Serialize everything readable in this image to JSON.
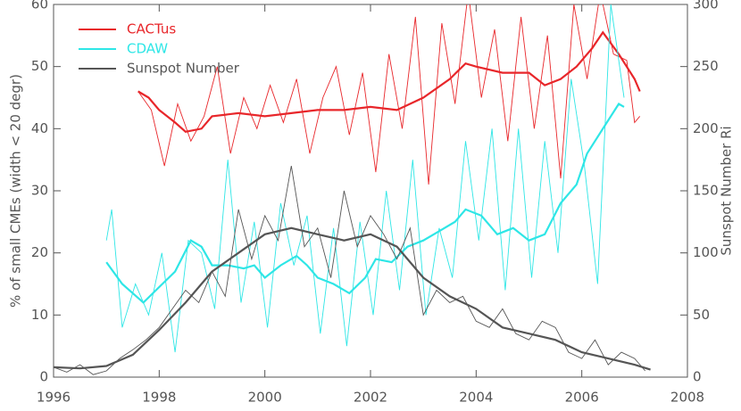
{
  "chart_data": {
    "type": "line",
    "ylabel": "% of small CMEs (width < 20 degr)",
    "y2label": "Sunspot Number Ri",
    "xlim": [
      1996,
      2008
    ],
    "xticks": [
      1996,
      1998,
      2000,
      2002,
      2004,
      2006,
      2008
    ],
    "ylim": [
      0,
      60
    ],
    "yticks": [
      0,
      10,
      20,
      30,
      40,
      50,
      60
    ],
    "y2lim": [
      0,
      300
    ],
    "y2ticks": [
      0,
      50,
      100,
      150,
      200,
      250,
      300
    ],
    "legend": "upper left",
    "series": [
      {
        "name": "CACTus",
        "color": "#e8262a",
        "axis": "y",
        "x": [
          1997.6,
          1997.85,
          1998.1,
          1998.35,
          1998.6,
          1998.85,
          1999.1,
          1999.35,
          1999.6,
          1999.85,
          2000.1,
          2000.35,
          2000.6,
          2000.85,
          2001.1,
          2001.35,
          2001.6,
          2001.85,
          2002.1,
          2002.35,
          2002.6,
          2002.85,
          2003.1,
          2003.35,
          2003.6,
          2003.85,
          2004.1,
          2004.35,
          2004.6,
          2004.85,
          2005.1,
          2005.35,
          2005.6,
          2005.85,
          2006.1,
          2006.35,
          2006.6,
          2006.85,
          2007.0,
          2007.1
        ],
        "values": [
          46,
          43,
          34,
          44,
          38,
          42,
          50,
          36,
          45,
          40,
          47,
          41,
          48,
          36,
          45,
          50,
          39,
          49,
          33,
          52,
          40,
          58,
          31,
          57,
          44,
          62,
          45,
          56,
          38,
          58,
          40,
          55,
          32,
          60,
          48,
          62,
          52,
          51,
          41,
          42
        ],
        "smoothed_x": [
          1997.6,
          1997.8,
          1998.0,
          1998.3,
          1998.5,
          1998.8,
          1999.0,
          1999.5,
          2000.0,
          2000.5,
          2001.0,
          2001.5,
          2002.0,
          2002.5,
          2003.0,
          2003.5,
          2003.8,
          2004.0,
          2004.5,
          2005.0,
          2005.3,
          2005.6,
          2005.9,
          2006.2,
          2006.4,
          2006.7,
          2007.0,
          2007.1
        ],
        "smoothed": [
          46,
          45,
          43,
          41,
          39.5,
          40,
          42,
          42.5,
          42,
          42.5,
          43,
          43,
          43.5,
          43,
          45,
          48,
          50.5,
          50,
          49,
          49,
          47,
          48,
          50,
          53,
          55.5,
          52,
          48,
          46
        ]
      },
      {
        "name": "CDAW",
        "color": "#2ee6e6",
        "axis": "y",
        "x": [
          1997.0,
          1997.1,
          1997.3,
          1997.55,
          1997.8,
          1998.05,
          1998.3,
          1998.55,
          1998.8,
          1999.05,
          1999.3,
          1999.55,
          1999.8,
          2000.05,
          2000.3,
          2000.55,
          2000.8,
          2001.05,
          2001.3,
          2001.55,
          2001.8,
          2002.05,
          2002.3,
          2002.55,
          2002.8,
          2003.05,
          2003.3,
          2003.55,
          2003.8,
          2004.05,
          2004.3,
          2004.55,
          2004.8,
          2005.05,
          2005.3,
          2005.55,
          2005.8,
          2006.05,
          2006.3,
          2006.55,
          2006.8
        ],
        "values": [
          22,
          27,
          8,
          15,
          10,
          20,
          4,
          22,
          20,
          11,
          35,
          12,
          25,
          8,
          28,
          18,
          26,
          7,
          24,
          5,
          25,
          10,
          30,
          14,
          35,
          10,
          24,
          16,
          38,
          22,
          40,
          14,
          40,
          16,
          38,
          20,
          48,
          34,
          15,
          60,
          45
        ],
        "smoothed_x": [
          1997.0,
          1997.3,
          1997.7,
          1998.0,
          1998.3,
          1998.6,
          1998.8,
          1999.0,
          1999.3,
          1999.6,
          1999.8,
          2000.0,
          2000.3,
          2000.6,
          2000.8,
          2001.0,
          2001.3,
          2001.6,
          2001.9,
          2002.1,
          2002.4,
          2002.7,
          2003.0,
          2003.3,
          2003.6,
          2003.8,
          2004.1,
          2004.4,
          2004.7,
          2005.0,
          2005.3,
          2005.6,
          2005.9,
          2006.1,
          2006.4,
          2006.7,
          2006.8
        ],
        "smoothed": [
          18.5,
          15,
          12,
          14.5,
          17,
          22,
          21,
          18,
          18,
          17.5,
          18,
          16,
          18,
          19.5,
          18,
          16,
          15,
          13.5,
          16,
          19,
          18.5,
          21,
          22,
          23.5,
          25,
          27,
          26,
          23,
          24,
          22,
          23,
          28,
          31,
          36,
          40,
          44,
          43.5
        ]
      },
      {
        "name": "Sunspot Number",
        "color": "#555555",
        "axis": "y2",
        "x": [
          1996.0,
          1996.25,
          1996.5,
          1996.75,
          1997.0,
          1997.25,
          1997.5,
          1997.75,
          1998.0,
          1998.25,
          1998.5,
          1998.75,
          1999.0,
          1999.25,
          1999.5,
          1999.75,
          2000.0,
          2000.25,
          2000.5,
          2000.75,
          2001.0,
          2001.25,
          2001.5,
          2001.75,
          2002.0,
          2002.25,
          2002.5,
          2002.75,
          2003.0,
          2003.25,
          2003.5,
          2003.75,
          2004.0,
          2004.25,
          2004.5,
          2004.75,
          2005.0,
          2005.25,
          2005.5,
          2005.75,
          2006.0,
          2006.25,
          2006.5,
          2006.75,
          2007.0,
          2007.2
        ],
        "values": [
          8,
          4,
          10,
          2,
          5,
          15,
          22,
          30,
          40,
          55,
          70,
          60,
          85,
          65,
          135,
          95,
          130,
          110,
          170,
          105,
          120,
          80,
          150,
          105,
          130,
          115,
          95,
          120,
          50,
          70,
          60,
          65,
          45,
          40,
          55,
          35,
          30,
          45,
          40,
          20,
          15,
          30,
          10,
          20,
          15,
          5
        ],
        "smoothed_x": [
          1996.0,
          1996.5,
          1997.0,
          1997.5,
          1998.0,
          1998.5,
          1999.0,
          1999.5,
          2000.0,
          2000.5,
          2001.0,
          2001.5,
          2002.0,
          2002.5,
          2003.0,
          2003.5,
          2004.0,
          2004.5,
          2005.0,
          2005.5,
          2006.0,
          2006.5,
          2007.0,
          2007.3
        ],
        "smoothed": [
          8,
          7,
          9,
          18,
          38,
          60,
          85,
          100,
          115,
          120,
          115,
          110,
          115,
          105,
          80,
          65,
          55,
          40,
          35,
          30,
          20,
          15,
          10,
          6
        ]
      }
    ]
  }
}
